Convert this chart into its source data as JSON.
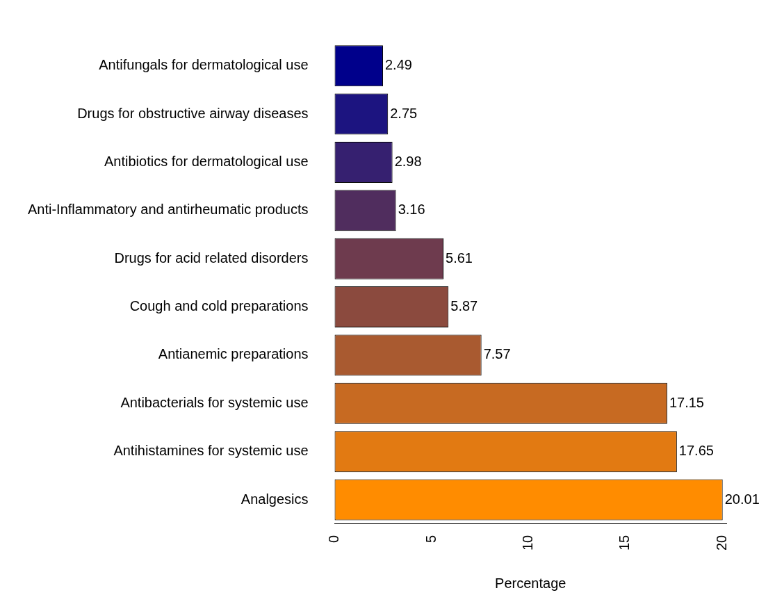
{
  "chart_data": {
    "type": "bar",
    "orientation": "horizontal",
    "xlabel": "Percentage",
    "categories": [
      "Antifungals for dermatological use",
      "Drugs for obstructive airway diseases",
      "Antibiotics for dermatological use",
      "Anti-Inflammatory and antirheumatic products",
      "Drugs for acid related disorders",
      "Cough and cold preparations",
      "Antianemic preparations",
      "Antibacterials for systemic use",
      "Antihistamines for systemic use",
      "Analgesics"
    ],
    "values": [
      2.49,
      2.75,
      2.98,
      3.16,
      5.61,
      5.87,
      7.57,
      17.15,
      17.65,
      20.01
    ],
    "colors": [
      "#00008b",
      "#1c1480",
      "#362070",
      "#502d5e",
      "#6e3b4e",
      "#8b4a3e",
      "#a95a30",
      "#c76a22",
      "#e27a12",
      "#ff8c00"
    ],
    "xlim": [
      0,
      20.2
    ],
    "xticks": [
      0,
      5,
      10,
      15,
      20
    ],
    "grid": false,
    "legend": false,
    "data_labels": true
  }
}
